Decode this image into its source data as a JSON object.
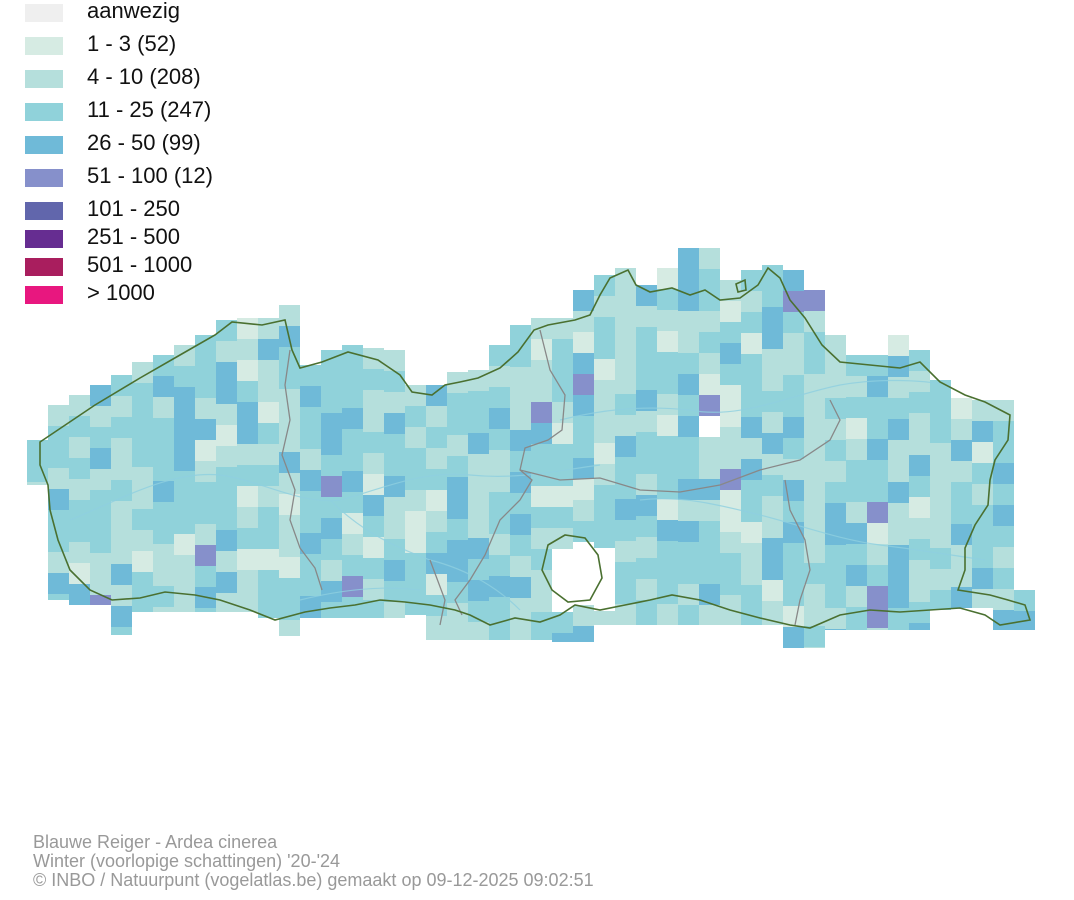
{
  "legend": {
    "items": [
      {
        "label": "aanwezig",
        "color": "#efefef"
      },
      {
        "label": "1 - 3 (52)",
        "color": "#d6ebe3"
      },
      {
        "label": "4 - 10 (208)",
        "color": "#b5dfdc"
      },
      {
        "label": "11 - 25 (247)",
        "color": "#90d2da"
      },
      {
        "label": "26 - 50 (99)",
        "color": "#6fbad8"
      },
      {
        "label": "51 - 100 (12)",
        "color": "#8690cb"
      },
      {
        "label": "101 - 250",
        "color": "#6166ac"
      },
      {
        "label": "251 - 500",
        "color": "#662d91"
      },
      {
        "label": "501 - 1000",
        "color": "#a91e5e"
      },
      {
        "label": "> 1000",
        "color": "#e8177f"
      }
    ]
  },
  "map": {
    "border_color": "#4a7030",
    "province_border_color": "#888888",
    "river_color": "#8fd0e0"
  },
  "caption": {
    "line1": "Blauwe Reiger - Ardea cinerea",
    "line2": "Winter (voorlopige schattingen) '20-'24",
    "line3": "© INBO / Natuurpunt (vogelatlas.be) gemaakt op 09-12-2025 09:02:51"
  }
}
